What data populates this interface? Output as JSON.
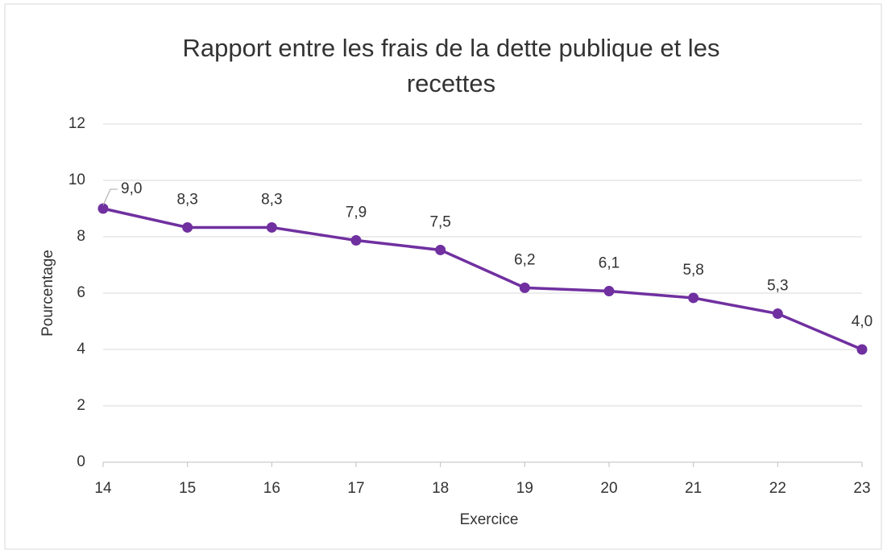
{
  "chart_data": {
    "type": "line",
    "title": "Rapport entre les frais de la dette publique et les recettes",
    "xlabel": "Exercice",
    "ylabel": "Pourcentage",
    "categories": [
      "14",
      "15",
      "16",
      "17",
      "18",
      "19",
      "20",
      "21",
      "22",
      "23"
    ],
    "series": [
      {
        "name": "Pourcentage",
        "color": "#7030a0",
        "values": [
          9.0,
          8.33,
          8.33,
          7.87,
          7.53,
          6.19,
          6.07,
          5.83,
          5.27,
          4.0
        ],
        "value_labels": [
          "9,0",
          "8,3",
          "8,3",
          "7,9",
          "7,5",
          "6,2",
          "6,1",
          "5,8",
          "5,3",
          "4,0"
        ]
      }
    ],
    "ylim": [
      0,
      12
    ],
    "yticks": [
      0,
      2,
      4,
      6,
      8,
      10,
      12
    ],
    "grid": true
  }
}
